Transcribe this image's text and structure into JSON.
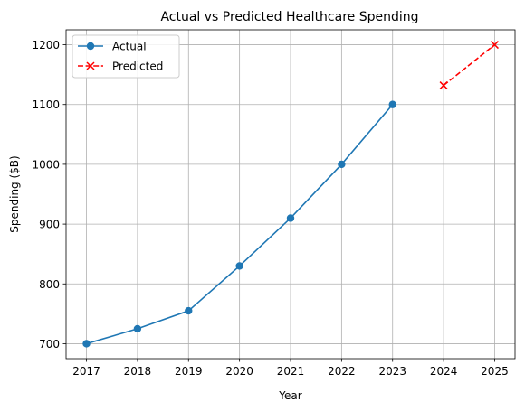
{
  "chart_data": {
    "type": "line",
    "title": "Actual vs Predicted Healthcare Spending",
    "xlabel": "Year",
    "ylabel": "Spending ($B)",
    "xlim": [
      2016.6,
      2025.4
    ],
    "ylim": [
      675,
      1225
    ],
    "xticks": [
      2017,
      2018,
      2019,
      2020,
      2021,
      2022,
      2023,
      2024,
      2025
    ],
    "yticks": [
      700,
      800,
      900,
      1000,
      1100,
      1200
    ],
    "grid": true,
    "legend": {
      "position": "top-left"
    },
    "series": [
      {
        "name": "Actual",
        "color": "#1f77b4",
        "marker": "circle",
        "linestyle": "solid",
        "x": [
          2017,
          2018,
          2019,
          2020,
          2021,
          2022,
          2023
        ],
        "y": [
          700,
          725,
          755,
          830,
          910,
          1000,
          1100
        ]
      },
      {
        "name": "Predicted",
        "color": "#ff0000",
        "marker": "x",
        "linestyle": "dashed",
        "x": [
          2024,
          2025
        ],
        "y": [
          1132,
          1200
        ]
      }
    ]
  }
}
